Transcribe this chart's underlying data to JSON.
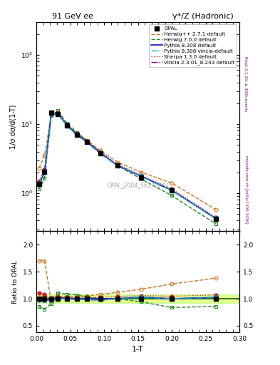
{
  "title_left": "91 GeV ee",
  "title_right": "γ*/Z (Hadronic)",
  "xlabel": "1-T",
  "ylabel_main": "1/σ dσ/d(1-T)",
  "ylabel_ratio": "Ratio to OPAL",
  "right_label_top": "Rivet 3.1.10; ≥ 400k events",
  "right_label_bot": "mcplots.cern.ch [arXiv:1306.3436]",
  "watermark": "OPAL_2004_S6132243",
  "x_opal": [
    0.004,
    0.012,
    0.022,
    0.032,
    0.045,
    0.06,
    0.075,
    0.095,
    0.12,
    0.155,
    0.2,
    0.265
  ],
  "y_opal": [
    1.35,
    2.05,
    14.5,
    14.0,
    9.5,
    7.0,
    5.5,
    3.8,
    2.5,
    1.7,
    1.1,
    0.42
  ],
  "x_herwig271": [
    0.004,
    0.012,
    0.022,
    0.032,
    0.045,
    0.06,
    0.075,
    0.095,
    0.12,
    0.155,
    0.2,
    0.265
  ],
  "y_herwig271": [
    2.3,
    3.5,
    13.5,
    14.5,
    9.8,
    7.3,
    5.8,
    4.1,
    2.8,
    2.0,
    1.4,
    0.58
  ],
  "x_herwig700": [
    0.004,
    0.012,
    0.022,
    0.032,
    0.045,
    0.06,
    0.075,
    0.095,
    0.12,
    0.155,
    0.2,
    0.265
  ],
  "y_herwig700": [
    1.15,
    1.65,
    13.2,
    15.5,
    10.3,
    7.5,
    5.7,
    3.8,
    2.5,
    1.6,
    0.92,
    0.36
  ],
  "x_pythia8308": [
    0.004,
    0.012,
    0.022,
    0.032,
    0.045,
    0.06,
    0.075,
    0.095,
    0.12,
    0.155,
    0.2,
    0.265
  ],
  "y_pythia8308": [
    1.35,
    2.0,
    14.2,
    14.2,
    9.6,
    7.0,
    5.5,
    3.8,
    2.5,
    1.75,
    1.1,
    0.43
  ],
  "x_pythia8308v": [
    0.004,
    0.012,
    0.022,
    0.032,
    0.045,
    0.06,
    0.075,
    0.095,
    0.12,
    0.155,
    0.2,
    0.265
  ],
  "y_pythia8308v": [
    1.3,
    2.0,
    14.0,
    14.0,
    9.5,
    6.9,
    5.4,
    3.7,
    2.5,
    1.75,
    1.1,
    0.43
  ],
  "x_sherpa": [
    0.004,
    0.012,
    0.022,
    0.032,
    0.045,
    0.06,
    0.075,
    0.095,
    0.12,
    0.155,
    0.2,
    0.265
  ],
  "y_sherpa": [
    1.5,
    2.2,
    14.5,
    14.5,
    9.8,
    7.1,
    5.6,
    3.9,
    2.6,
    1.8,
    1.15,
    0.45
  ],
  "x_vincia": [
    0.004,
    0.012,
    0.022,
    0.032,
    0.045,
    0.06,
    0.075,
    0.095,
    0.12,
    0.155,
    0.2,
    0.265
  ],
  "y_vincia": [
    1.3,
    2.0,
    14.0,
    14.0,
    9.5,
    6.9,
    5.4,
    3.7,
    2.5,
    1.75,
    1.1,
    0.43
  ],
  "color_opal": "#000000",
  "color_herwig271": "#cc7722",
  "color_herwig700": "#228822",
  "color_pythia8308": "#2222cc",
  "color_pythia8308v": "#00aacc",
  "color_sherpa": "#cc2222",
  "color_vincia": "#880088",
  "opal_band_color": "#ccff88",
  "opal_band_lo": 0.92,
  "opal_band_hi": 1.08,
  "ylim_main": [
    0.28,
    300
  ],
  "ylim_ratio": [
    0.38,
    2.25
  ],
  "xlim": [
    0.0,
    0.3
  ],
  "yticks_ratio": [
    0.5,
    1.0,
    1.5,
    2.0
  ]
}
